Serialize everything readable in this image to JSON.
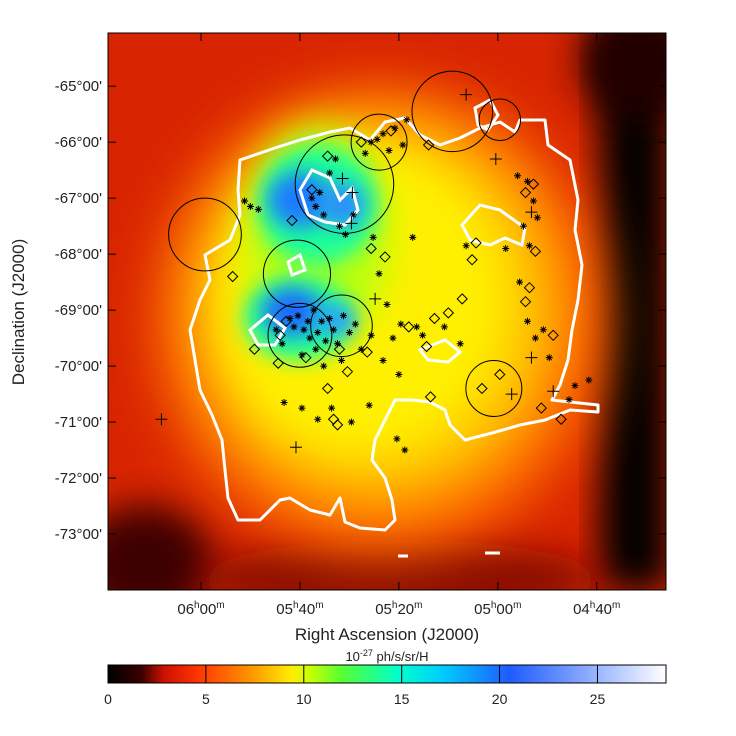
{
  "chart_data": {
    "type": "heatmap",
    "title": "",
    "xlabel": "Right Ascension (J2000)",
    "ylabel": "Declination (J2000)",
    "x_ticks": [
      {
        "label": "06h00m",
        "h": "06",
        "m": "00",
        "value": 90.0
      },
      {
        "label": "05h40m",
        "h": "05",
        "m": "40",
        "value": 85.0
      },
      {
        "label": "05h20m",
        "h": "05",
        "m": "20",
        "value": 80.0
      },
      {
        "label": "05h00m",
        "h": "05",
        "m": "00",
        "value": 75.0
      },
      {
        "label": "04h40m",
        "h": "04",
        "m": "40",
        "value": 70.0
      }
    ],
    "y_ticks": [
      {
        "label": "-65°00'",
        "value": -65
      },
      {
        "label": "-66°00'",
        "value": -66
      },
      {
        "label": "-67°00'",
        "value": -67
      },
      {
        "label": "-68°00'",
        "value": -68
      },
      {
        "label": "-69°00'",
        "value": -69
      },
      {
        "label": "-70°00'",
        "value": -70
      },
      {
        "label": "-71°00'",
        "value": -71
      },
      {
        "label": "-72°00'",
        "value": -72
      },
      {
        "label": "-73°00'",
        "value": -73
      }
    ],
    "xlim_deg": [
      94.7,
      66.5
    ],
    "ylim_deg": [
      -64.05,
      -74.0
    ],
    "colorbar": {
      "title": "10-27 ph/s/sr/H",
      "title_base": "10",
      "title_exp": "-27",
      "title_unit": " ph/s/sr/H",
      "range": [
        0,
        28.5
      ],
      "ticks": [
        0,
        5,
        10,
        15,
        20,
        25
      ],
      "tick_labels": [
        "0",
        "5",
        "10",
        "15",
        "20",
        "25"
      ],
      "colors": [
        "#000000",
        "#ff2200",
        "#ffd700",
        "#ffff00",
        "#7cfc00",
        "#00ffd0",
        "#00ccff",
        "#1e5cff",
        "#ffffff"
      ]
    },
    "emission_peaks": [
      {
        "ra": 84.2,
        "dec": -69.3,
        "value": 21
      },
      {
        "ra": 84.0,
        "dec": -67.1,
        "value": 20
      },
      {
        "ra": 82.6,
        "dec": -67.2,
        "value": 17
      },
      {
        "ra": 83.0,
        "dec": -69.3,
        "value": 16
      }
    ],
    "circles": [
      {
        "ra": 77.3,
        "dec": -65.45,
        "r_deg": 0.72
      },
      {
        "ra": 74.9,
        "dec": -65.6,
        "r_deg": 0.37
      },
      {
        "ra": 82.75,
        "dec": -66.75,
        "r_deg": 0.88
      },
      {
        "ra": 81.0,
        "dec": -66.0,
        "r_deg": 0.5
      },
      {
        "ra": 89.8,
        "dec": -67.65,
        "r_deg": 0.65
      },
      {
        "ra": 85.15,
        "dec": -68.35,
        "r_deg": 0.6
      },
      {
        "ra": 85.0,
        "dec": -69.45,
        "r_deg": 0.57
      },
      {
        "ra": 82.9,
        "dec": -69.28,
        "r_deg": 0.55
      },
      {
        "ra": 75.2,
        "dec": -70.4,
        "r_deg": 0.5
      }
    ],
    "plus_markers": [
      {
        "ra": 76.6,
        "dec": -65.15
      },
      {
        "ra": 82.85,
        "dec": -66.65
      },
      {
        "ra": 82.35,
        "dec": -66.9
      },
      {
        "ra": 82.4,
        "dec": -67.45
      },
      {
        "ra": 81.2,
        "dec": -68.8
      },
      {
        "ra": 75.1,
        "dec": -66.3
      },
      {
        "ra": 73.3,
        "dec": -67.25
      },
      {
        "ra": 74.3,
        "dec": -70.5
      },
      {
        "ra": 73.3,
        "dec": -69.85
      },
      {
        "ra": 72.2,
        "dec": -70.45
      },
      {
        "ra": 85.2,
        "dec": -71.45
      },
      {
        "ra": 92.0,
        "dec": -70.95
      }
    ],
    "diamond_markers": [
      {
        "ra": 80.4,
        "dec": -65.8
      },
      {
        "ra": 78.5,
        "dec": -66.05
      },
      {
        "ra": 84.4,
        "dec": -66.85
      },
      {
        "ra": 85.4,
        "dec": -67.4
      },
      {
        "ra": 83.6,
        "dec": -66.25
      },
      {
        "ra": 81.9,
        "dec": -66.0
      },
      {
        "ra": 81.4,
        "dec": -67.9
      },
      {
        "ra": 80.7,
        "dec": -68.05
      },
      {
        "ra": 79.5,
        "dec": -69.3
      },
      {
        "ra": 78.6,
        "dec": -69.65
      },
      {
        "ra": 78.2,
        "dec": -69.15
      },
      {
        "ra": 77.5,
        "dec": -69.05
      },
      {
        "ra": 76.8,
        "dec": -68.8
      },
      {
        "ra": 76.3,
        "dec": -68.1
      },
      {
        "ra": 76.1,
        "dec": -67.8
      },
      {
        "ra": 73.6,
        "dec": -66.9
      },
      {
        "ra": 73.2,
        "dec": -66.75
      },
      {
        "ra": 73.4,
        "dec": -68.6
      },
      {
        "ra": 73.6,
        "dec": -68.85
      },
      {
        "ra": 72.2,
        "dec": -69.45
      },
      {
        "ra": 86.0,
        "dec": -69.45
      },
      {
        "ra": 86.1,
        "dec": -69.95
      },
      {
        "ra": 87.3,
        "dec": -69.7
      },
      {
        "ra": 88.4,
        "dec": -68.4
      },
      {
        "ra": 83.0,
        "dec": -69.7
      },
      {
        "ra": 84.7,
        "dec": -69.85
      },
      {
        "ra": 82.6,
        "dec": -70.1
      },
      {
        "ra": 83.6,
        "dec": -70.4
      },
      {
        "ra": 81.6,
        "dec": -69.75
      },
      {
        "ra": 83.3,
        "dec": -70.95
      },
      {
        "ra": 83.1,
        "dec": -71.05
      },
      {
        "ra": 78.4,
        "dec": -70.55
      },
      {
        "ra": 75.8,
        "dec": -70.4
      },
      {
        "ra": 74.9,
        "dec": -70.15
      },
      {
        "ra": 72.8,
        "dec": -70.75
      },
      {
        "ra": 71.8,
        "dec": -70.95
      },
      {
        "ra": 73.1,
        "dec": -67.95
      },
      {
        "ra": 85.7,
        "dec": -69.2
      }
    ],
    "asterisk_markers": [
      {
        "ra": 85.5,
        "dec": -69.15
      },
      {
        "ra": 85.3,
        "dec": -69.3
      },
      {
        "ra": 85.1,
        "dec": -69.1
      },
      {
        "ra": 84.8,
        "dec": -69.35
      },
      {
        "ra": 84.6,
        "dec": -69.2
      },
      {
        "ra": 84.5,
        "dec": -69.5
      },
      {
        "ra": 84.3,
        "dec": -69.0
      },
      {
        "ra": 84.1,
        "dec": -69.4
      },
      {
        "ra": 83.9,
        "dec": -69.2
      },
      {
        "ra": 83.7,
        "dec": -69.55
      },
      {
        "ra": 83.5,
        "dec": -69.15
      },
      {
        "ra": 83.3,
        "dec": -69.35
      },
      {
        "ra": 83.1,
        "dec": -69.6
      },
      {
        "ra": 82.8,
        "dec": -69.1
      },
      {
        "ra": 82.5,
        "dec": -69.4
      },
      {
        "ra": 82.2,
        "dec": -69.25
      },
      {
        "ra": 85.9,
        "dec": -69.6
      },
      {
        "ra": 86.2,
        "dec": -69.35
      },
      {
        "ra": 84.9,
        "dec": -69.8
      },
      {
        "ra": 84.2,
        "dec": -69.7
      },
      {
        "ra": 83.8,
        "dec": -70.0
      },
      {
        "ra": 82.9,
        "dec": -69.9
      },
      {
        "ra": 81.9,
        "dec": -69.7
      },
      {
        "ra": 81.4,
        "dec": -69.45
      },
      {
        "ra": 80.8,
        "dec": -69.9
      },
      {
        "ra": 80.3,
        "dec": -69.5
      },
      {
        "ra": 79.9,
        "dec": -69.25
      },
      {
        "ra": 79.1,
        "dec": -69.3
      },
      {
        "ra": 78.8,
        "dec": -69.45
      },
      {
        "ra": 84.4,
        "dec": -67.0
      },
      {
        "ra": 84.2,
        "dec": -67.15
      },
      {
        "ra": 84.0,
        "dec": -66.9
      },
      {
        "ra": 83.8,
        "dec": -67.3
      },
      {
        "ra": 83.5,
        "dec": -66.55
      },
      {
        "ra": 83.2,
        "dec": -66.3
      },
      {
        "ra": 83.0,
        "dec": -67.5
      },
      {
        "ra": 82.7,
        "dec": -67.65
      },
      {
        "ra": 82.3,
        "dec": -67.3
      },
      {
        "ra": 81.7,
        "dec": -66.2
      },
      {
        "ra": 81.4,
        "dec": -66.0
      },
      {
        "ra": 81.1,
        "dec": -65.95
      },
      {
        "ra": 80.8,
        "dec": -65.85
      },
      {
        "ra": 80.5,
        "dec": -66.15
      },
      {
        "ra": 80.2,
        "dec": -65.75
      },
      {
        "ra": 79.8,
        "dec": -66.05
      },
      {
        "ra": 79.6,
        "dec": -65.6
      },
      {
        "ra": 81.3,
        "dec": -67.7
      },
      {
        "ra": 81.0,
        "dec": -68.35
      },
      {
        "ra": 80.6,
        "dec": -68.9
      },
      {
        "ra": 87.5,
        "dec": -67.15
      },
      {
        "ra": 87.8,
        "dec": -67.05
      },
      {
        "ra": 87.1,
        "dec": -67.2
      },
      {
        "ra": 79.3,
        "dec": -67.7
      },
      {
        "ra": 76.6,
        "dec": -67.85
      },
      {
        "ra": 74.6,
        "dec": -67.9
      },
      {
        "ra": 74.0,
        "dec": -66.6
      },
      {
        "ra": 73.5,
        "dec": -66.7
      },
      {
        "ra": 73.7,
        "dec": -67.5
      },
      {
        "ra": 73.2,
        "dec": -67.05
      },
      {
        "ra": 73.0,
        "dec": -67.35
      },
      {
        "ra": 73.4,
        "dec": -67.85
      },
      {
        "ra": 73.9,
        "dec": -68.5
      },
      {
        "ra": 73.5,
        "dec": -69.2
      },
      {
        "ra": 73.1,
        "dec": -69.5
      },
      {
        "ra": 72.7,
        "dec": -69.35
      },
      {
        "ra": 72.4,
        "dec": -69.85
      },
      {
        "ra": 77.7,
        "dec": -69.3
      },
      {
        "ra": 76.9,
        "dec": -69.6
      },
      {
        "ra": 80.0,
        "dec": -70.15
      },
      {
        "ra": 83.4,
        "dec": -70.75
      },
      {
        "ra": 82.4,
        "dec": -71.0
      },
      {
        "ra": 81.5,
        "dec": -70.7
      },
      {
        "ra": 80.1,
        "dec": -71.3
      },
      {
        "ra": 79.7,
        "dec": -71.5
      },
      {
        "ra": 85.8,
        "dec": -70.65
      },
      {
        "ra": 84.9,
        "dec": -70.75
      },
      {
        "ra": 84.1,
        "dec": -70.95
      },
      {
        "ra": 71.4,
        "dec": -70.6
      },
      {
        "ra": 71.1,
        "dec": -70.35
      },
      {
        "ra": 70.4,
        "dec": -70.25
      }
    ]
  }
}
